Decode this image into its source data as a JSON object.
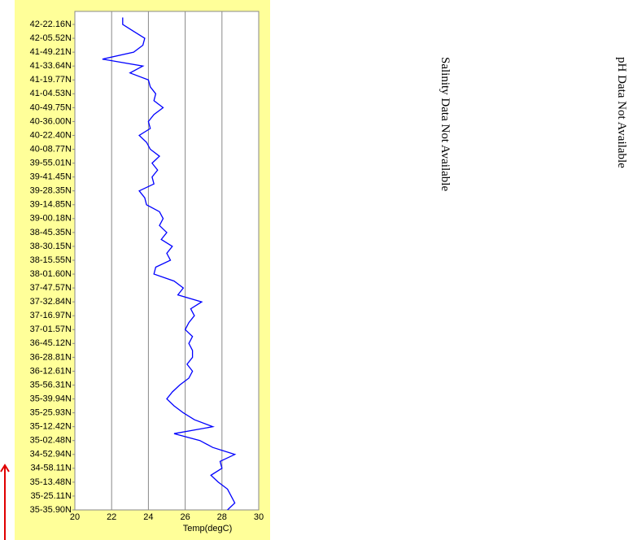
{
  "chart_data": {
    "type": "line",
    "orientation": "vertical",
    "xlabel": "Temp(degC)",
    "xlim": [
      20,
      30
    ],
    "xticks": [
      20,
      22,
      24,
      26,
      28,
      30
    ],
    "grid": true,
    "color": "#0000ff",
    "annotations": [
      "Salinity Data Not Available",
      "pH Data Not Available"
    ],
    "categories": [
      null,
      "42-22.16N",
      null,
      "42-05.52N",
      null,
      "41-49.21N",
      null,
      "41-33.64N",
      null,
      "41-19.77N",
      null,
      "41-04.53N",
      null,
      "40-49.75N",
      null,
      "40-36.00N",
      null,
      "40-22.40N",
      null,
      "40-08.77N",
      null,
      "39-55.01N",
      null,
      "39-41.45N",
      null,
      "39-28.35N",
      null,
      "39-14.85N",
      null,
      "39-00.18N",
      null,
      "38-45.35N",
      null,
      "38-30.15N",
      null,
      "38-15.55N",
      null,
      "38-01.60N",
      null,
      "37-47.57N",
      null,
      "37-32.84N",
      null,
      "37-16.97N",
      null,
      "37-01.57N",
      null,
      "36-45.12N",
      null,
      "36-28.81N",
      null,
      "36-12.61N",
      null,
      "35-56.31N",
      null,
      "35-39.94N",
      null,
      "35-25.93N",
      null,
      "35-12.42N",
      null,
      "35-02.48N",
      null,
      "34-52.94N",
      null,
      "34-58.11N",
      null,
      "35-13.48N",
      null,
      "35-25.11N",
      null,
      "35-35.90N"
    ],
    "values": [
      22.6,
      22.6,
      23.2,
      23.8,
      23.7,
      23.2,
      21.5,
      23.7,
      23.0,
      24.0,
      24.1,
      24.4,
      24.3,
      24.8,
      24.3,
      24.0,
      24.1,
      23.5,
      23.9,
      24.1,
      24.6,
      24.2,
      24.5,
      24.2,
      24.3,
      23.5,
      23.8,
      23.9,
      24.6,
      24.8,
      24.6,
      25.0,
      24.7,
      25.3,
      25.0,
      25.2,
      24.4,
      24.3,
      25.4,
      25.9,
      25.6,
      26.9,
      26.3,
      26.5,
      26.2,
      26.0,
      26.4,
      26.2,
      26.4,
      26.4,
      26.1,
      26.4,
      26.2,
      25.7,
      25.3,
      25.0,
      25.4,
      25.9,
      26.5,
      27.5,
      25.4,
      26.8,
      27.5,
      28.7,
      27.9,
      28.0,
      27.4,
      27.8,
      28.3,
      28.5,
      28.7,
      28.3
    ]
  }
}
